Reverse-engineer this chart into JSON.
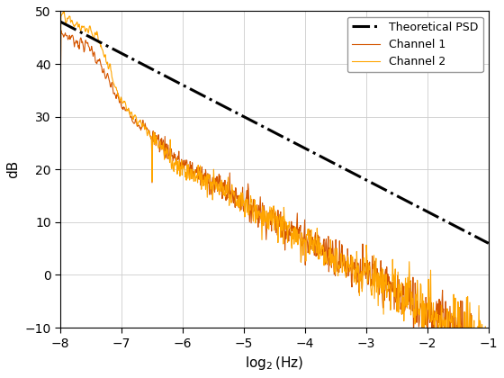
{
  "title": "",
  "xlabel": "log_2(Hz)",
  "ylabel": "dB",
  "xlim": [
    -8,
    -1
  ],
  "ylim": [
    -10,
    50
  ],
  "xticks": [
    -8,
    -7,
    -6,
    -5,
    -4,
    -3,
    -2,
    -1
  ],
  "yticks": [
    -10,
    0,
    10,
    20,
    30,
    40,
    50
  ],
  "theoretical_color": "#000000",
  "theoretical_linestyle": "-.",
  "theoretical_linewidth": 2.2,
  "theoretical_y_at_minus8": 48.0,
  "theoretical_y_at_minus1": 6.0,
  "ch1_color": "#D45500",
  "ch2_color": "#FFA500",
  "ch_linewidth": 0.8,
  "legend_labels": [
    "Theoretical PSD",
    "Channel 1",
    "Channel 2"
  ],
  "background_color": "#ffffff",
  "grid_color": "#cccccc"
}
